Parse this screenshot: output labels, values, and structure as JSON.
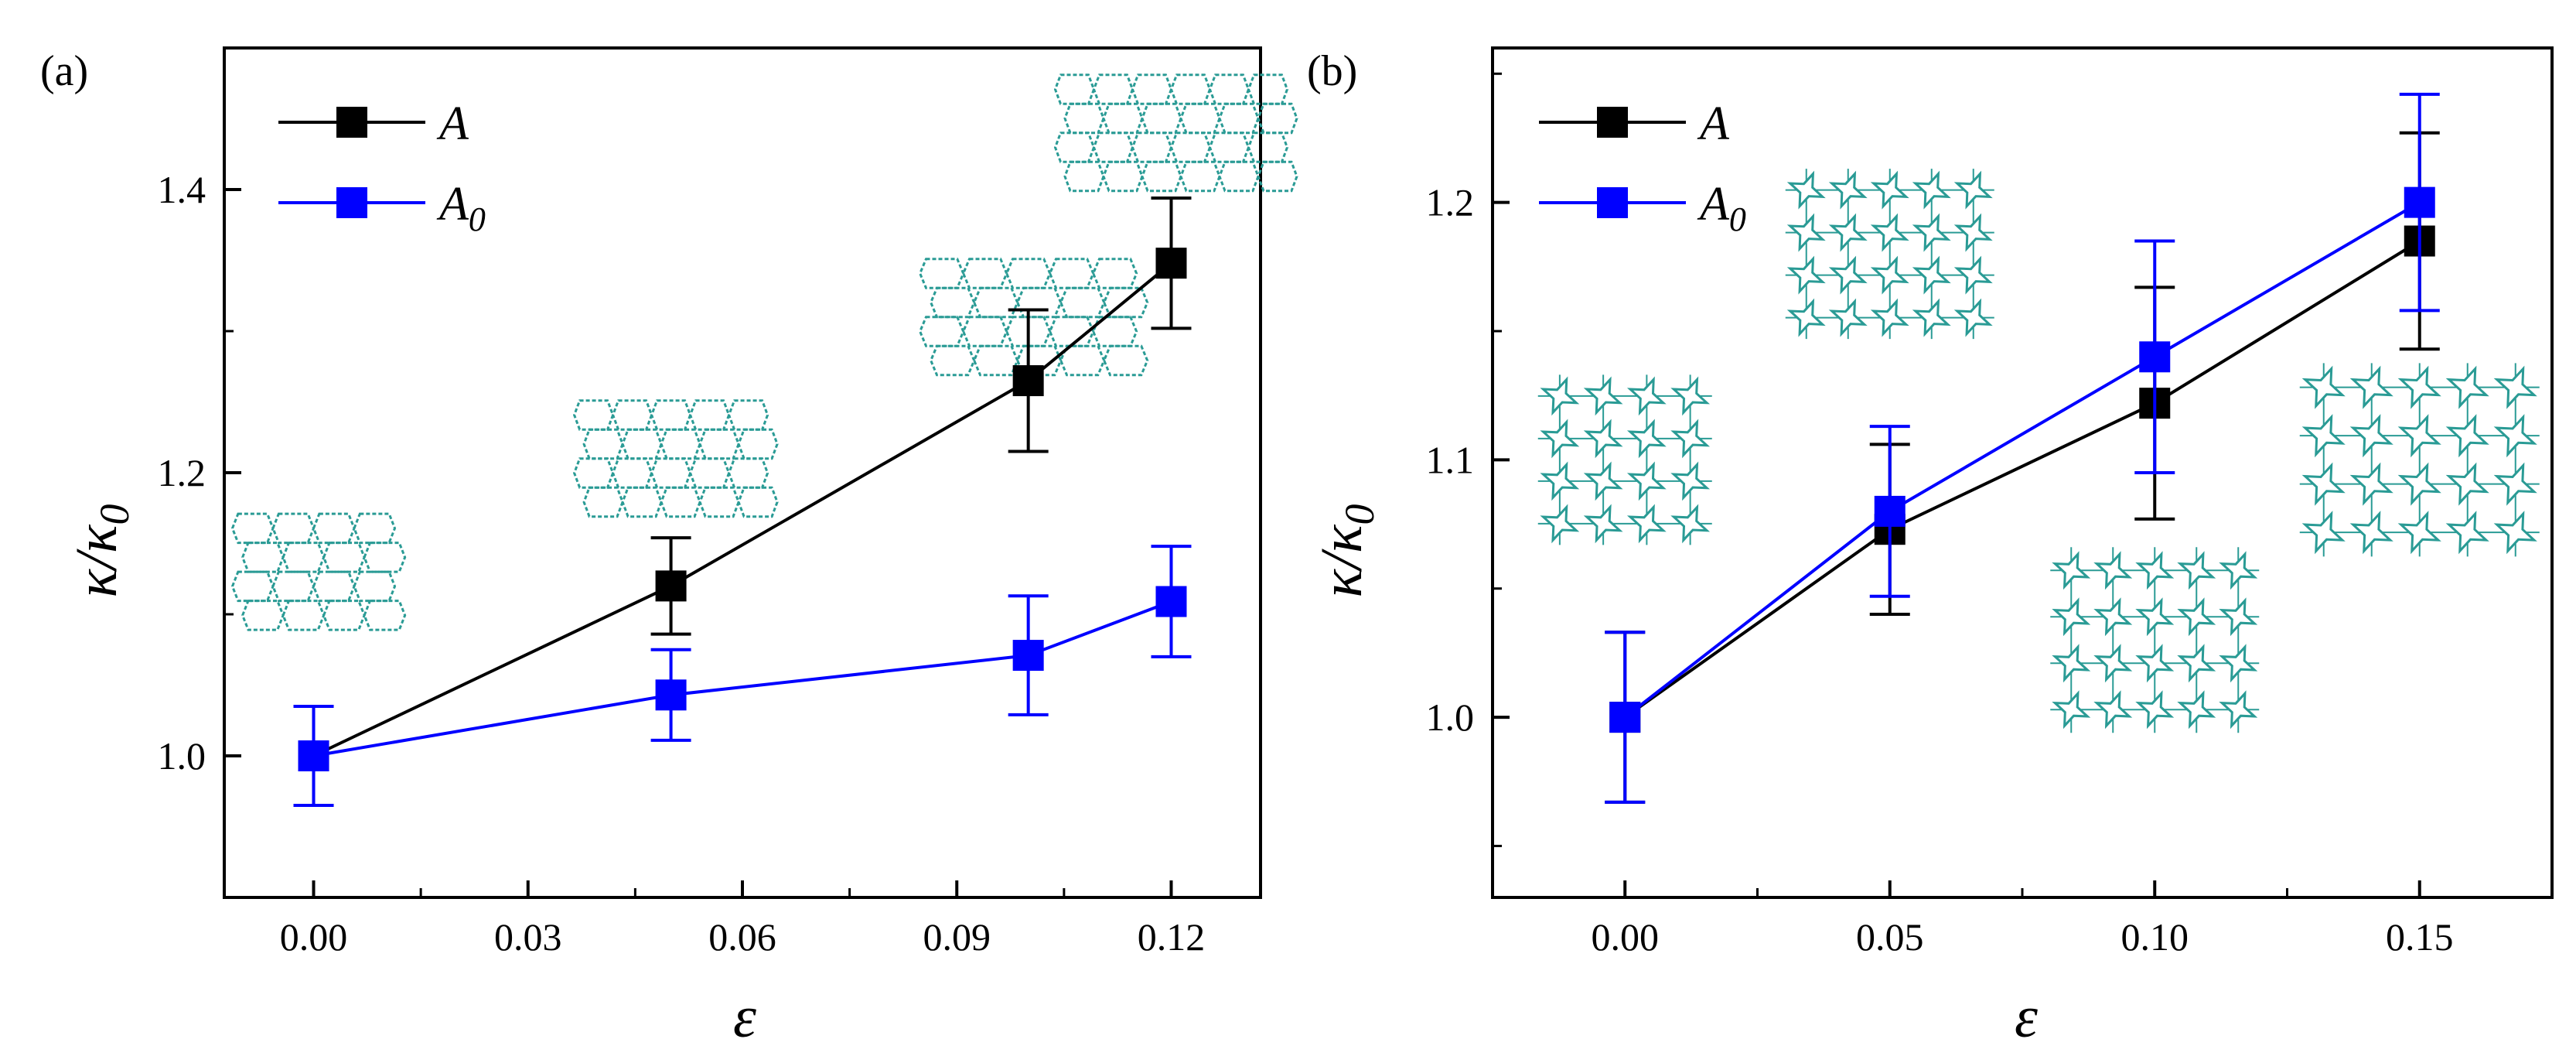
{
  "colors": {
    "series_A": "#000000",
    "series_A0": "#0000ff",
    "inset_lattice": "#2a9b95",
    "axis": "#000000",
    "background": "#ffffff"
  },
  "chart_data": [
    {
      "type": "line",
      "panel_label": "(a)",
      "title": "",
      "xlabel": "ε",
      "ylabel": "κ/κ0",
      "ylabel_parts": {
        "kappa": "κ/κ",
        "subscript": "0"
      },
      "xlim": [
        -0.0125,
        0.1325
      ],
      "ylim": [
        0.9,
        1.5
      ],
      "xticks": [
        0.0,
        0.03,
        0.06,
        0.09,
        0.12
      ],
      "xtick_labels": [
        "0.00",
        "0.03",
        "0.06",
        "0.09",
        "0.12"
      ],
      "yticks": [
        1.0,
        1.2,
        1.4
      ],
      "ytick_labels": [
        "1.0",
        "1.2",
        "1.4"
      ],
      "legend_position": "top-left",
      "series": [
        {
          "name": "A",
          "label_main": "A",
          "label_sub": "",
          "color": "#000000",
          "x": [
            0.0,
            0.05,
            0.1,
            0.12
          ],
          "y": [
            1.0,
            1.12,
            1.265,
            1.348
          ],
          "yerr": [
            0.035,
            0.034,
            0.05,
            0.046
          ]
        },
        {
          "name": "A0",
          "label_main": "A",
          "label_sub": "0",
          "color": "#0000ff",
          "x": [
            0.0,
            0.05,
            0.1,
            0.12
          ],
          "y": [
            1.0,
            1.043,
            1.071,
            1.109
          ],
          "yerr": [
            0.035,
            0.032,
            0.042,
            0.039
          ]
        }
      ],
      "insets": [
        {
          "name": "lattice-inset-e000",
          "kind": "rectangular",
          "near_x": 0.0,
          "near_y": 1.13
        },
        {
          "name": "lattice-inset-e005",
          "kind": "rectangular",
          "near_x": 0.05,
          "near_y": 1.21
        },
        {
          "name": "lattice-inset-e010",
          "kind": "rectangular",
          "near_x": 0.1,
          "near_y": 1.31
        },
        {
          "name": "lattice-inset-e012",
          "kind": "rectangular",
          "near_x": 0.12,
          "near_y": 1.44
        }
      ]
    },
    {
      "type": "line",
      "panel_label": "(b)",
      "title": "",
      "xlabel": "ε",
      "ylabel": "κ/κ0",
      "ylabel_parts": {
        "kappa": "κ/κ",
        "subscript": "0"
      },
      "xlim": [
        -0.025,
        0.175
      ],
      "ylim": [
        0.93,
        1.26
      ],
      "xticks": [
        0.0,
        0.05,
        0.1,
        0.15
      ],
      "xtick_labels": [
        "0.00",
        "0.05",
        "0.10",
        "0.15"
      ],
      "yticks": [
        1.0,
        1.1,
        1.2
      ],
      "ytick_labels": [
        "1.0",
        "1.1",
        "1.2"
      ],
      "legend_position": "top-left",
      "series": [
        {
          "name": "A",
          "label_main": "A",
          "label_sub": "",
          "color": "#000000",
          "x": [
            0.0,
            0.05,
            0.1,
            0.15
          ],
          "y": [
            1.0,
            1.073,
            1.122,
            1.185
          ],
          "yerr": [
            0.033,
            0.033,
            0.045,
            0.042
          ]
        },
        {
          "name": "A0",
          "label_main": "A",
          "label_sub": "0",
          "color": "#0000ff",
          "x": [
            0.0,
            0.05,
            0.1,
            0.15
          ],
          "y": [
            1.0,
            1.08,
            1.14,
            1.2
          ],
          "yerr": [
            0.033,
            0.033,
            0.045,
            0.042
          ]
        }
      ],
      "insets": [
        {
          "name": "star-lattice-inset-e000",
          "kind": "star",
          "near_x": 0.0,
          "near_y": 1.1
        },
        {
          "name": "star-lattice-inset-e005",
          "kind": "star",
          "near_x": 0.05,
          "near_y": 1.18
        },
        {
          "name": "star-lattice-inset-e010",
          "kind": "star",
          "near_x": 0.1,
          "near_y": 1.03
        },
        {
          "name": "star-lattice-inset-e015",
          "kind": "star",
          "near_x": 0.15,
          "near_y": 1.1
        }
      ]
    }
  ]
}
